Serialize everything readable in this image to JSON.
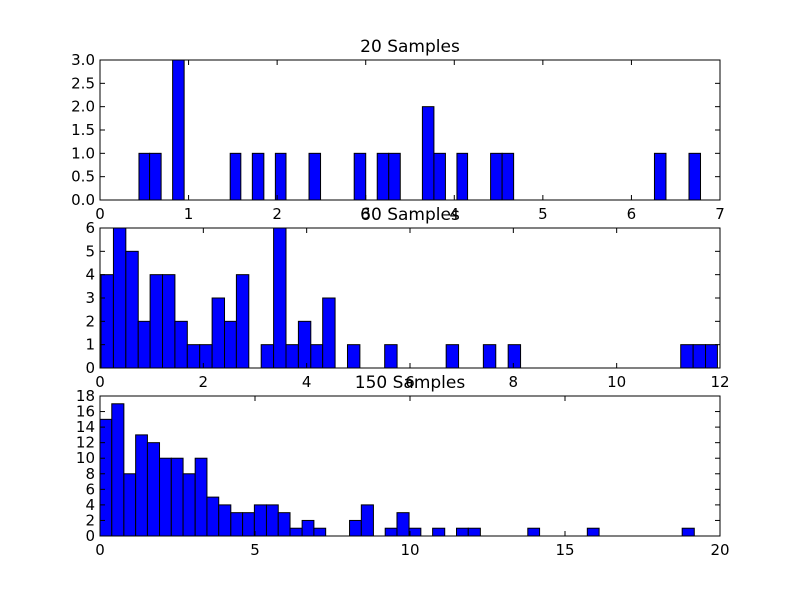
{
  "chart_data": [
    {
      "type": "bar",
      "title": "20 Samples",
      "bar_color": "#0000ff",
      "edge_color": "#000000",
      "xlim": [
        0,
        7
      ],
      "ylim": [
        0,
        3
      ],
      "xticks": [
        "0",
        "1",
        "2",
        "3",
        "4",
        "5",
        "6",
        "7"
      ],
      "yticks": [
        "0.0",
        "0.5",
        "1.0",
        "1.5",
        "2.0",
        "2.5",
        "3.0"
      ],
      "bars": [
        {
          "x0": 0.44,
          "x1": 0.56,
          "value": 1
        },
        {
          "x0": 0.56,
          "x1": 0.69,
          "value": 1
        },
        {
          "x0": 0.82,
          "x1": 0.95,
          "value": 3
        },
        {
          "x0": 1.47,
          "x1": 1.59,
          "value": 1
        },
        {
          "x0": 1.72,
          "x1": 1.85,
          "value": 1
        },
        {
          "x0": 1.98,
          "x1": 2.1,
          "value": 1
        },
        {
          "x0": 2.36,
          "x1": 2.49,
          "value": 1
        },
        {
          "x0": 2.87,
          "x1": 3.0,
          "value": 1
        },
        {
          "x0": 3.13,
          "x1": 3.26,
          "value": 1
        },
        {
          "x0": 3.26,
          "x1": 3.39,
          "value": 1
        },
        {
          "x0": 3.64,
          "x1": 3.77,
          "value": 2
        },
        {
          "x0": 3.77,
          "x1": 3.9,
          "value": 1
        },
        {
          "x0": 4.03,
          "x1": 4.15,
          "value": 1
        },
        {
          "x0": 4.41,
          "x1": 4.54,
          "value": 1
        },
        {
          "x0": 4.54,
          "x1": 4.67,
          "value": 1
        },
        {
          "x0": 6.26,
          "x1": 6.39,
          "value": 1
        },
        {
          "x0": 6.65,
          "x1": 6.78,
          "value": 1
        }
      ]
    },
    {
      "type": "bar",
      "title": "60 Samples",
      "bar_color": "#0000ff",
      "edge_color": "#000000",
      "xlim": [
        0,
        12
      ],
      "ylim": [
        0,
        6
      ],
      "xticks": [
        "0",
        "2",
        "4",
        "6",
        "8",
        "10",
        "12"
      ],
      "yticks": [
        "0",
        "1",
        "2",
        "3",
        "4",
        "5",
        "6"
      ],
      "bars": [
        {
          "x0": 0.02,
          "x1": 0.26,
          "value": 4
        },
        {
          "x0": 0.26,
          "x1": 0.5,
          "value": 6
        },
        {
          "x0": 0.5,
          "x1": 0.74,
          "value": 5
        },
        {
          "x0": 0.74,
          "x1": 0.97,
          "value": 2
        },
        {
          "x0": 0.97,
          "x1": 1.21,
          "value": 4
        },
        {
          "x0": 1.21,
          "x1": 1.45,
          "value": 4
        },
        {
          "x0": 1.45,
          "x1": 1.69,
          "value": 2
        },
        {
          "x0": 1.69,
          "x1": 1.93,
          "value": 1
        },
        {
          "x0": 1.93,
          "x1": 2.17,
          "value": 1
        },
        {
          "x0": 2.17,
          "x1": 2.41,
          "value": 3
        },
        {
          "x0": 2.41,
          "x1": 2.64,
          "value": 2
        },
        {
          "x0": 2.64,
          "x1": 2.88,
          "value": 4
        },
        {
          "x0": 3.12,
          "x1": 3.36,
          "value": 1
        },
        {
          "x0": 3.36,
          "x1": 3.6,
          "value": 6
        },
        {
          "x0": 3.6,
          "x1": 3.84,
          "value": 1
        },
        {
          "x0": 3.84,
          "x1": 4.08,
          "value": 2
        },
        {
          "x0": 4.08,
          "x1": 4.31,
          "value": 1
        },
        {
          "x0": 4.31,
          "x1": 4.55,
          "value": 3
        },
        {
          "x0": 4.79,
          "x1": 5.03,
          "value": 1
        },
        {
          "x0": 5.51,
          "x1": 5.75,
          "value": 1
        },
        {
          "x0": 6.7,
          "x1": 6.94,
          "value": 1
        },
        {
          "x0": 7.42,
          "x1": 7.66,
          "value": 1
        },
        {
          "x0": 7.9,
          "x1": 8.14,
          "value": 1
        },
        {
          "x0": 11.24,
          "x1": 11.48,
          "value": 1
        },
        {
          "x0": 11.48,
          "x1": 11.72,
          "value": 1
        },
        {
          "x0": 11.72,
          "x1": 11.95,
          "value": 1
        }
      ]
    },
    {
      "type": "bar",
      "title": "150 Samples",
      "bar_color": "#0000ff",
      "edge_color": "#000000",
      "xlim": [
        0,
        20
      ],
      "ylim": [
        0,
        18
      ],
      "xticks": [
        "0",
        "5",
        "10",
        "15",
        "20"
      ],
      "yticks": [
        "0",
        "2",
        "4",
        "6",
        "8",
        "10",
        "12",
        "14",
        "16",
        "18"
      ],
      "bars": [
        {
          "x0": 0.0,
          "x1": 0.38,
          "value": 15
        },
        {
          "x0": 0.38,
          "x1": 0.77,
          "value": 17
        },
        {
          "x0": 0.77,
          "x1": 1.15,
          "value": 8
        },
        {
          "x0": 1.15,
          "x1": 1.53,
          "value": 13
        },
        {
          "x0": 1.53,
          "x1": 1.92,
          "value": 12
        },
        {
          "x0": 1.92,
          "x1": 2.3,
          "value": 10
        },
        {
          "x0": 2.3,
          "x1": 2.68,
          "value": 10
        },
        {
          "x0": 2.68,
          "x1": 3.07,
          "value": 8
        },
        {
          "x0": 3.07,
          "x1": 3.45,
          "value": 10
        },
        {
          "x0": 3.45,
          "x1": 3.83,
          "value": 5
        },
        {
          "x0": 3.83,
          "x1": 4.22,
          "value": 4
        },
        {
          "x0": 4.22,
          "x1": 4.6,
          "value": 3
        },
        {
          "x0": 4.6,
          "x1": 4.98,
          "value": 3
        },
        {
          "x0": 4.98,
          "x1": 5.37,
          "value": 4
        },
        {
          "x0": 5.37,
          "x1": 5.75,
          "value": 4
        },
        {
          "x0": 5.75,
          "x1": 6.13,
          "value": 3
        },
        {
          "x0": 6.13,
          "x1": 6.52,
          "value": 1
        },
        {
          "x0": 6.52,
          "x1": 6.9,
          "value": 2
        },
        {
          "x0": 6.9,
          "x1": 7.28,
          "value": 1
        },
        {
          "x0": 8.05,
          "x1": 8.43,
          "value": 2
        },
        {
          "x0": 8.43,
          "x1": 8.82,
          "value": 4
        },
        {
          "x0": 9.2,
          "x1": 9.58,
          "value": 1
        },
        {
          "x0": 9.58,
          "x1": 9.97,
          "value": 3
        },
        {
          "x0": 9.97,
          "x1": 10.35,
          "value": 1
        },
        {
          "x0": 10.73,
          "x1": 11.12,
          "value": 1
        },
        {
          "x0": 11.5,
          "x1": 11.88,
          "value": 1
        },
        {
          "x0": 11.88,
          "x1": 12.27,
          "value": 1
        },
        {
          "x0": 13.8,
          "x1": 14.18,
          "value": 1
        },
        {
          "x0": 15.72,
          "x1": 16.1,
          "value": 1
        },
        {
          "x0": 18.78,
          "x1": 19.17,
          "value": 1
        }
      ]
    }
  ]
}
